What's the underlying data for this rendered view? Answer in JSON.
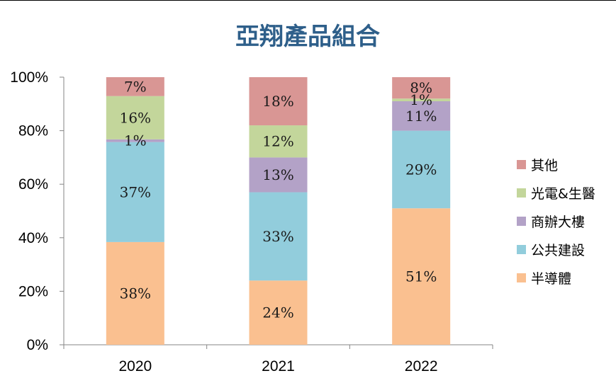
{
  "chart_data": {
    "type": "bar",
    "stacked": true,
    "percent_stacked": true,
    "title": "亞翔產品組合",
    "title_color": "#2e5f8a",
    "categories": [
      "2020",
      "2021",
      "2022"
    ],
    "series": [
      {
        "name": "半導體",
        "color": "#fac090",
        "values": [
          38,
          24,
          51
        ],
        "labels": [
          "38%",
          "24%",
          "51%"
        ]
      },
      {
        "name": "公共建設",
        "color": "#92cddc",
        "values": [
          37,
          33,
          29
        ],
        "labels": [
          "37%",
          "33%",
          "29%"
        ]
      },
      {
        "name": "商辦大樓",
        "color": "#b3a2c7",
        "values": [
          1,
          13,
          11
        ],
        "labels": [
          "1%",
          "13%",
          "11%"
        ]
      },
      {
        "name": "光電&生醫",
        "color": "#c3d69b",
        "values": [
          16,
          12,
          1
        ],
        "labels": [
          "16%",
          "12%",
          "1%"
        ]
      },
      {
        "name": "其他",
        "color": "#d99694",
        "values": [
          7,
          18,
          8
        ],
        "labels": [
          "7%",
          "18%",
          "8%"
        ]
      }
    ],
    "y_ticks": [
      "0%",
      "20%",
      "40%",
      "60%",
      "80%",
      "100%"
    ],
    "ylim": [
      0,
      100
    ],
    "grid": false,
    "legend_position": "right"
  }
}
